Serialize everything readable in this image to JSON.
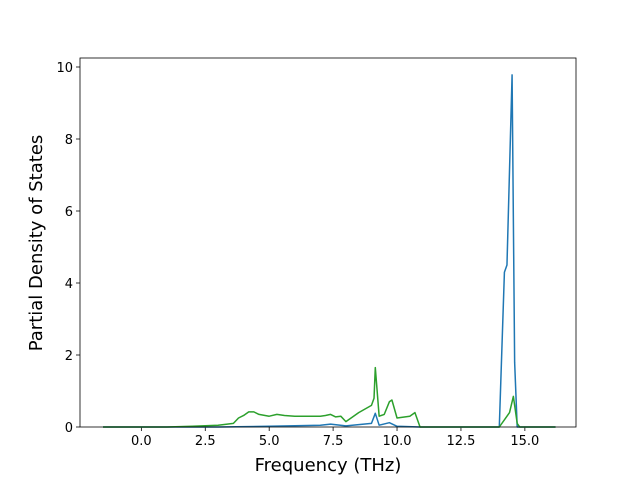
{
  "chart_data": {
    "type": "line",
    "xlabel": "Frequency (THz)",
    "ylabel": "Partial Density of States",
    "xlim": [
      -2.4,
      17.0
    ],
    "ylim": [
      0,
      10.25
    ],
    "xticks": [
      {
        "value": 0,
        "label": "0.0"
      },
      2.5,
      {
        "value": 5,
        "label": "5.0"
      },
      7.5,
      {
        "value": 10,
        "label": "10.0"
      },
      12.5,
      {
        "value": 15,
        "label": "15.0"
      }
    ],
    "yticks": [
      0,
      2,
      4,
      6,
      8,
      10
    ],
    "series": [
      {
        "color": "#1f77b4",
        "x": [
          -1.5,
          3,
          5,
          7,
          7.4,
          8,
          9,
          9.15,
          9.3,
          9.7,
          10,
          10.9,
          14,
          14.2,
          14.3,
          14.5,
          14.6,
          14.7,
          16.2
        ],
        "values": [
          0,
          0,
          0.02,
          0.05,
          0.08,
          0.03,
          0.1,
          0.38,
          0.05,
          0.12,
          0.02,
          0,
          0,
          4.3,
          4.5,
          9.78,
          1.8,
          0,
          0
        ]
      },
      {
        "color": "#2ca02c",
        "x": [
          -1.5,
          1,
          2,
          3,
          3.6,
          3.8,
          4,
          4.2,
          4.4,
          4.6,
          5,
          5.3,
          5.6,
          6,
          7,
          7.2,
          7.4,
          7.6,
          7.8,
          8,
          8.3,
          8.5,
          9,
          9.1,
          9.15,
          9.3,
          9.5,
          9.7,
          9.8,
          10,
          10.5,
          10.7,
          10.9,
          14,
          14.2,
          14.4,
          14.55,
          14.7,
          14.8,
          16.2
        ],
        "values": [
          0,
          0,
          0.02,
          0.05,
          0.1,
          0.25,
          0.32,
          0.42,
          0.42,
          0.35,
          0.3,
          0.35,
          0.32,
          0.3,
          0.3,
          0.32,
          0.35,
          0.28,
          0.3,
          0.15,
          0.3,
          0.4,
          0.6,
          0.8,
          1.65,
          0.3,
          0.35,
          0.7,
          0.75,
          0.25,
          0.3,
          0.4,
          0,
          0,
          0.2,
          0.4,
          0.85,
          0.1,
          0,
          0
        ]
      }
    ]
  }
}
